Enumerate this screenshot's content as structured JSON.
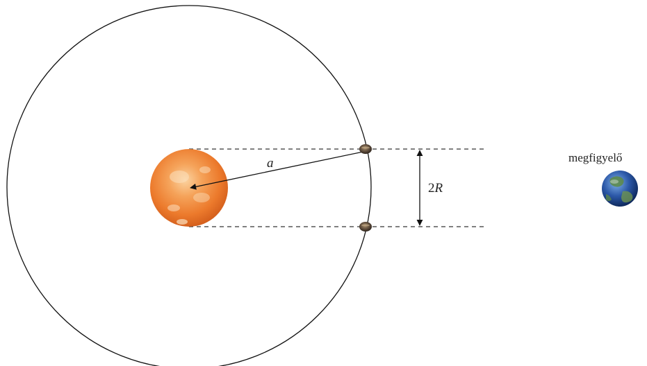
{
  "labels": {
    "semi_major_axis": "a",
    "transit_width_prefix": "2",
    "transit_width_symbol": "R",
    "observer": "megfigyelő"
  },
  "colors": {
    "orbit_line": "#111111",
    "dashed_line": "#333333",
    "star_core": "#f6b06a",
    "star_mid": "#ef7f2a",
    "star_edge": "#d4601c",
    "planet": "#5a4a3a",
    "earth_ocean": "#2a4f9c",
    "earth_land": "#4e7a3a"
  },
  "icons": {
    "star": "sun-icon",
    "planet": "planet-icon",
    "observer": "earth-icon"
  }
}
